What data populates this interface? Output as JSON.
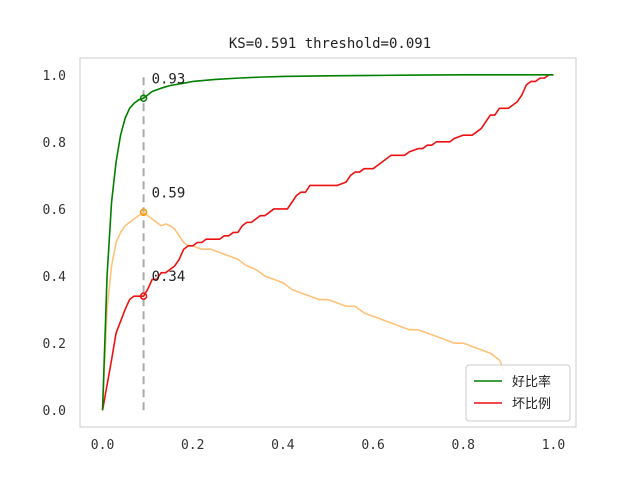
{
  "chart_data": {
    "type": "line",
    "title": "KS=0.591 threshold=0.091",
    "xlabel": "",
    "ylabel": "",
    "xlim": [
      -0.05,
      1.05
    ],
    "ylim": [
      -0.05,
      1.05
    ],
    "grid": false,
    "legend_position": "lower-right",
    "x_ticks": [
      {
        "value": 0.0,
        "label": "0.0"
      },
      {
        "value": 0.2,
        "label": "0.2"
      },
      {
        "value": 0.4,
        "label": "0.4"
      },
      {
        "value": 0.6,
        "label": "0.6"
      },
      {
        "value": 0.8,
        "label": "0.8"
      },
      {
        "value": 1.0,
        "label": "1.0"
      }
    ],
    "y_ticks": [
      {
        "value": 0.0,
        "label": "0.0"
      },
      {
        "value": 0.2,
        "label": "0.2"
      },
      {
        "value": 0.4,
        "label": "0.4"
      },
      {
        "value": 0.6,
        "label": "0.6"
      },
      {
        "value": 0.8,
        "label": "0.8"
      },
      {
        "value": 1.0,
        "label": "1.0"
      }
    ],
    "threshold_line": {
      "x": 0.091,
      "y_range": [
        0,
        1.0
      ],
      "color": "#aaaaaa"
    },
    "series": [
      {
        "name": "好比率",
        "color": "#008000",
        "in_legend": true,
        "x": [
          0.0,
          0.01,
          0.02,
          0.03,
          0.04,
          0.05,
          0.06,
          0.07,
          0.08,
          0.091,
          0.11,
          0.13,
          0.15,
          0.18,
          0.2,
          0.25,
          0.3,
          0.35,
          0.4,
          0.5,
          0.6,
          0.7,
          0.8,
          0.9,
          1.0
        ],
        "y": [
          0.0,
          0.4,
          0.62,
          0.74,
          0.82,
          0.87,
          0.9,
          0.915,
          0.925,
          0.93,
          0.95,
          0.96,
          0.968,
          0.975,
          0.98,
          0.986,
          0.99,
          0.993,
          0.995,
          0.997,
          0.998,
          0.999,
          1.0,
          1.0,
          1.0
        ]
      },
      {
        "name": "坏比例",
        "color": "#ee1111",
        "in_legend": true,
        "x": [
          0.0,
          0.02,
          0.03,
          0.05,
          0.06,
          0.07,
          0.08,
          0.091,
          0.1,
          0.11,
          0.12,
          0.13,
          0.14,
          0.15,
          0.16,
          0.17,
          0.18,
          0.19,
          0.2,
          0.21,
          0.22,
          0.23,
          0.24,
          0.25,
          0.26,
          0.27,
          0.28,
          0.29,
          0.3,
          0.31,
          0.32,
          0.33,
          0.34,
          0.35,
          0.36,
          0.37,
          0.38,
          0.39,
          0.4,
          0.41,
          0.42,
          0.43,
          0.44,
          0.45,
          0.46,
          0.47,
          0.48,
          0.5,
          0.52,
          0.54,
          0.55,
          0.56,
          0.57,
          0.58,
          0.59,
          0.6,
          0.61,
          0.62,
          0.63,
          0.64,
          0.65,
          0.66,
          0.67,
          0.68,
          0.7,
          0.71,
          0.72,
          0.73,
          0.74,
          0.75,
          0.76,
          0.77,
          0.78,
          0.8,
          0.81,
          0.82,
          0.83,
          0.84,
          0.85,
          0.86,
          0.87,
          0.88,
          0.89,
          0.9,
          0.91,
          0.92,
          0.93,
          0.94,
          0.95,
          0.96,
          0.97,
          0.98,
          0.99,
          1.0
        ],
        "y": [
          0.0,
          0.15,
          0.23,
          0.3,
          0.33,
          0.34,
          0.34,
          0.34,
          0.36,
          0.39,
          0.39,
          0.41,
          0.41,
          0.42,
          0.43,
          0.45,
          0.48,
          0.49,
          0.49,
          0.5,
          0.5,
          0.51,
          0.51,
          0.51,
          0.51,
          0.52,
          0.52,
          0.53,
          0.53,
          0.55,
          0.56,
          0.56,
          0.57,
          0.58,
          0.58,
          0.59,
          0.6,
          0.6,
          0.6,
          0.6,
          0.62,
          0.64,
          0.65,
          0.65,
          0.67,
          0.67,
          0.67,
          0.67,
          0.67,
          0.68,
          0.7,
          0.71,
          0.71,
          0.72,
          0.72,
          0.72,
          0.73,
          0.74,
          0.75,
          0.76,
          0.76,
          0.76,
          0.76,
          0.77,
          0.78,
          0.78,
          0.79,
          0.79,
          0.8,
          0.8,
          0.8,
          0.8,
          0.81,
          0.82,
          0.82,
          0.82,
          0.83,
          0.84,
          0.86,
          0.88,
          0.88,
          0.9,
          0.9,
          0.9,
          0.91,
          0.92,
          0.94,
          0.97,
          0.98,
          0.98,
          0.99,
          0.99,
          1.0,
          1.0
        ]
      },
      {
        "name": "",
        "color": "#ffc278",
        "in_legend": false,
        "x": [
          0.0,
          0.01,
          0.02,
          0.03,
          0.04,
          0.05,
          0.06,
          0.07,
          0.08,
          0.091,
          0.1,
          0.11,
          0.12,
          0.13,
          0.14,
          0.15,
          0.16,
          0.17,
          0.18,
          0.19,
          0.2,
          0.22,
          0.24,
          0.26,
          0.28,
          0.3,
          0.32,
          0.34,
          0.36,
          0.38,
          0.4,
          0.42,
          0.44,
          0.46,
          0.48,
          0.5,
          0.52,
          0.54,
          0.56,
          0.58,
          0.6,
          0.62,
          0.64,
          0.66,
          0.68,
          0.7,
          0.72,
          0.74,
          0.76,
          0.78,
          0.8,
          0.82,
          0.84,
          0.86,
          0.88,
          0.89
        ],
        "y": [
          0.0,
          0.3,
          0.43,
          0.5,
          0.53,
          0.55,
          0.56,
          0.57,
          0.58,
          0.59,
          0.58,
          0.57,
          0.56,
          0.55,
          0.555,
          0.55,
          0.54,
          0.52,
          0.5,
          0.49,
          0.49,
          0.48,
          0.48,
          0.47,
          0.46,
          0.45,
          0.43,
          0.42,
          0.4,
          0.39,
          0.38,
          0.36,
          0.35,
          0.34,
          0.33,
          0.33,
          0.32,
          0.31,
          0.31,
          0.29,
          0.28,
          0.27,
          0.26,
          0.25,
          0.24,
          0.24,
          0.23,
          0.22,
          0.21,
          0.2,
          0.2,
          0.19,
          0.18,
          0.17,
          0.15,
          0.12
        ]
      }
    ],
    "markers": [
      {
        "x": 0.091,
        "y": 0.93,
        "color": "#008000",
        "label": "0.93"
      },
      {
        "x": 0.091,
        "y": 0.59,
        "color": "#ff9900",
        "label": "0.59"
      },
      {
        "x": 0.091,
        "y": 0.34,
        "color": "#ee1111",
        "label": "0.34"
      }
    ]
  }
}
